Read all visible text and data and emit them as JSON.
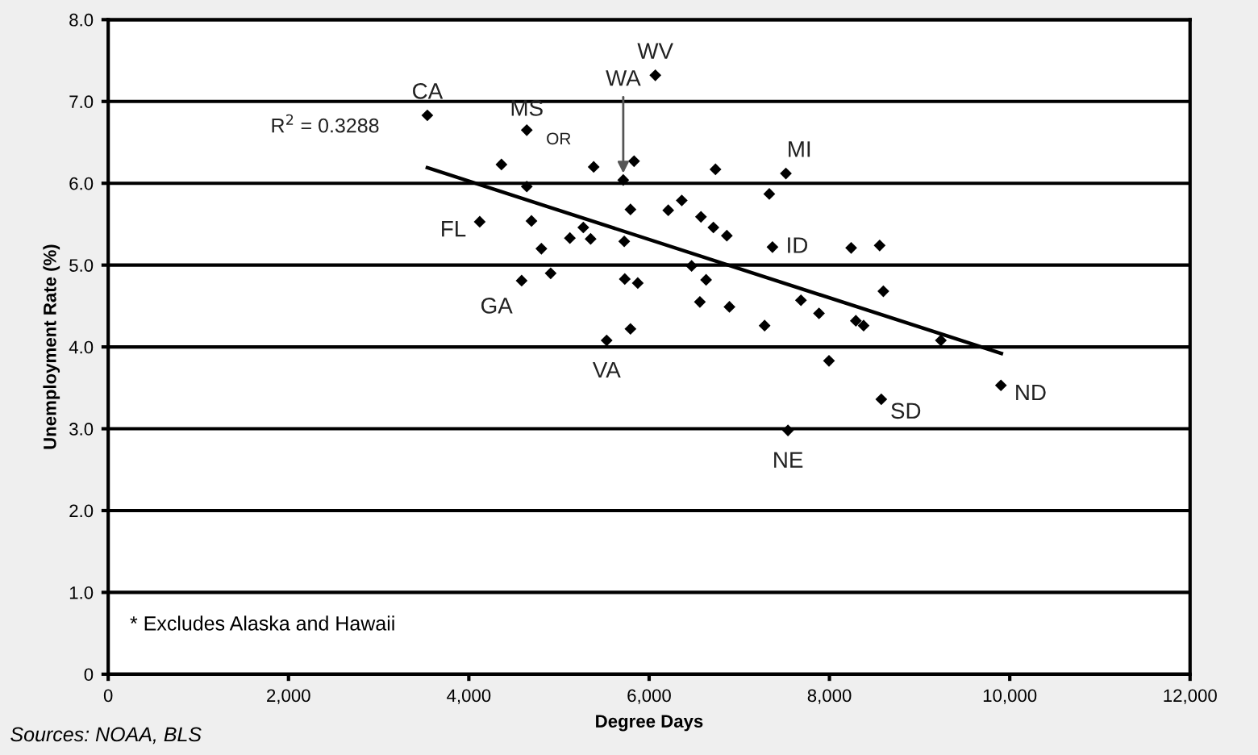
{
  "chart_data": {
    "type": "scatter",
    "xlabel": "Degree Days",
    "ylabel": "Unemployment Rate (%)",
    "xlim": [
      0,
      12000
    ],
    "ylim": [
      0,
      8
    ],
    "xticks": [
      {
        "value": 0,
        "label": "0"
      },
      {
        "value": 2000,
        "label": "2,000"
      },
      {
        "value": 4000,
        "label": "4,000"
      },
      {
        "value": 6000,
        "label": "6,000"
      },
      {
        "value": 8000,
        "label": "8,000"
      },
      {
        "value": 10000,
        "label": "10,000"
      },
      {
        "value": 12000,
        "label": "12,000"
      }
    ],
    "yticks": [
      0,
      {
        "value": 1,
        "label": "1.0"
      },
      {
        "value": 2,
        "label": "2.0"
      },
      {
        "value": 3,
        "label": "3.0"
      },
      {
        "value": 4,
        "label": "4.0"
      },
      {
        "value": 5,
        "label": "5.0"
      },
      {
        "value": 6,
        "label": "6.0"
      },
      {
        "value": 7,
        "label": "7.0"
      },
      {
        "value": 8,
        "label": "8.0"
      }
    ],
    "grid": "y",
    "marker": "diamond",
    "series": [
      {
        "color": "#000000",
        "x": [
          3540,
          4643,
          4362,
          4643,
          5385,
          5833,
          5713,
          5793,
          4121,
          4695,
          5270,
          5121,
          5351,
          5724,
          4805,
          4908,
          4586,
          5730,
          5874,
          5793,
          5529,
          6069,
          6736,
          7517,
          7333,
          6212,
          6362,
          6575,
          6713,
          6862,
          7368,
          8241,
          8557,
          6471,
          6632,
          6563,
          6891,
          8598,
          7684,
          7884,
          7281,
          8293,
          8379,
          9236,
          7995,
          9902,
          8575,
          7540
        ],
        "values": [
          6.83,
          6.65,
          6.23,
          5.96,
          6.2,
          6.27,
          6.04,
          5.68,
          5.53,
          5.54,
          5.46,
          5.33,
          5.32,
          5.29,
          5.2,
          4.9,
          4.81,
          4.83,
          4.78,
          4.22,
          4.08,
          7.32,
          6.17,
          6.12,
          5.87,
          5.67,
          5.79,
          5.59,
          5.46,
          5.36,
          5.22,
          5.21,
          5.24,
          4.99,
          4.82,
          4.55,
          4.49,
          4.68,
          4.57,
          4.41,
          4.26,
          4.32,
          4.26,
          4.08,
          3.83,
          3.53,
          3.36,
          2.98
        ]
      },
      {
        "type": "line",
        "color": "#000000",
        "marker": "none",
        "line_style": "solid",
        "x": [
          3540,
          9907
        ],
        "values": [
          6.19,
          3.92
        ]
      }
    ],
    "annotations": [
      {
        "text": "CA",
        "x": 3540,
        "y": 6.83
      },
      {
        "text": "MS",
        "x": 4643,
        "y": 6.65
      },
      {
        "text": "OR",
        "x": 5385,
        "y": 6.2
      },
      {
        "text": "WA",
        "x": 5713,
        "y": 6.04
      },
      {
        "text": "WV",
        "x": 6069,
        "y": 7.32
      },
      {
        "text": "MI",
        "x": 7517,
        "y": 6.12
      },
      {
        "text": "FL",
        "x": 4121,
        "y": 5.53
      },
      {
        "text": "ID",
        "x": 7368,
        "y": 5.22
      },
      {
        "text": "GA",
        "x": 4586,
        "y": 4.81
      },
      {
        "text": "VA",
        "x": 5529,
        "y": 4.08
      },
      {
        "text": "NE",
        "x": 7540,
        "y": 2.98
      },
      {
        "text": "SD",
        "x": 8575,
        "y": 3.36
      },
      {
        "text": "ND",
        "x": 9902,
        "y": 3.53
      },
      {
        "text": "R$^{2}$ = 0.3288",
        "x": 3540,
        "y": 6.19
      },
      "* Excludes Alaska and Hawaii",
      "Sources: NOAA, BLS"
    ]
  }
}
